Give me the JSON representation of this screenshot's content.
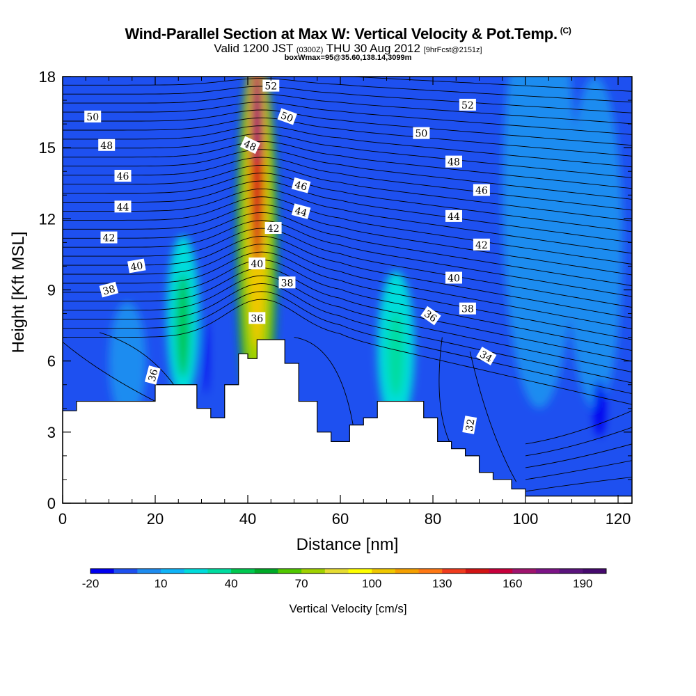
{
  "title": {
    "main": "Wind-Parallel Section at Max W: Vertical Velocity & Pot.Temp.",
    "mark": "(C)",
    "sub_a": "Valid 1200 JST",
    "sub_b": "(0300Z)",
    "sub_c": "THU 30 Aug 2012",
    "sub_d": "[9hrFcst@2151z]",
    "sub3": "boxWmax=95@35.60,138.14,3099m"
  },
  "chart_data": {
    "type": "heatmap",
    "xlabel": "Distance [nm]",
    "ylabel": "Height [Kft MSL]",
    "xlim": [
      0,
      123
    ],
    "ylim": [
      0,
      18
    ],
    "x_ticks": [
      0,
      20,
      40,
      60,
      80,
      100,
      120
    ],
    "y_ticks": [
      0,
      3,
      6,
      9,
      12,
      15,
      18
    ],
    "colorbar": {
      "label": "Vertical Velocity [cm/s]",
      "min": -20,
      "max": 200,
      "step": 10,
      "tick_values": [
        -20,
        10,
        40,
        70,
        100,
        130,
        160,
        190
      ],
      "colors": [
        "#0000f0",
        "#1e50f0",
        "#1e8cf0",
        "#10b4f8",
        "#00dcdc",
        "#00dca0",
        "#00c850",
        "#00aa28",
        "#50c800",
        "#a0d200",
        "#e6dc32",
        "#ffff00",
        "#f0c800",
        "#f5a000",
        "#ff7814",
        "#f03c1e",
        "#d21414",
        "#c8003c",
        "#a0146e",
        "#7d1487",
        "#5a147d",
        "#460a6e"
      ]
    },
    "terrain": [
      [
        0,
        3.9
      ],
      [
        3,
        3.9
      ],
      [
        3,
        4.3
      ],
      [
        20,
        4.3
      ],
      [
        20,
        5.0
      ],
      [
        29,
        5.0
      ],
      [
        29,
        4.0
      ],
      [
        32,
        4.0
      ],
      [
        32,
        3.6
      ],
      [
        35,
        3.6
      ],
      [
        35,
        5.0
      ],
      [
        38,
        5.0
      ],
      [
        38,
        6.3
      ],
      [
        40,
        6.3
      ],
      [
        40,
        6.1
      ],
      [
        42,
        6.1
      ],
      [
        42,
        6.9
      ],
      [
        48,
        6.9
      ],
      [
        48,
        5.9
      ],
      [
        51,
        5.9
      ],
      [
        51,
        4.3
      ],
      [
        55,
        4.3
      ],
      [
        55,
        3.0
      ],
      [
        58,
        3.0
      ],
      [
        58,
        2.6
      ],
      [
        62,
        2.6
      ],
      [
        62,
        3.3
      ],
      [
        65,
        3.3
      ],
      [
        65,
        3.6
      ],
      [
        68,
        3.6
      ],
      [
        68,
        4.3
      ],
      [
        78,
        4.3
      ],
      [
        78,
        3.6
      ],
      [
        81,
        3.6
      ],
      [
        81,
        2.6
      ],
      [
        84,
        2.6
      ],
      [
        84,
        2.3
      ],
      [
        87,
        2.3
      ],
      [
        87,
        2.0
      ],
      [
        90,
        2.0
      ],
      [
        90,
        1.3
      ],
      [
        93,
        1.3
      ],
      [
        93,
        1.0
      ],
      [
        97,
        1.0
      ],
      [
        97,
        0.6
      ],
      [
        100,
        0.6
      ],
      [
        100,
        0.3
      ],
      [
        123,
        0.3
      ]
    ],
    "w_features": [
      {
        "cx": 42,
        "cy": 11,
        "rx": 4.5,
        "ry": 8,
        "w": 50
      },
      {
        "cx": 42,
        "cy": 11.5,
        "rx": 3.2,
        "ry": 7.5,
        "w": 70
      },
      {
        "cx": 42,
        "cy": 13,
        "rx": 2.3,
        "ry": 6.5,
        "w": 100
      },
      {
        "cx": 42,
        "cy": 14.5,
        "rx": 1.5,
        "ry": 4.5,
        "w": 140
      },
      {
        "cx": 42,
        "cy": 16.3,
        "rx": 1.0,
        "ry": 2.0,
        "w": 160
      },
      {
        "cx": 26,
        "cy": 7.8,
        "rx": 3.5,
        "ry": 3.5,
        "w": 20
      },
      {
        "cx": 26,
        "cy": 7.5,
        "rx": 1.5,
        "ry": 2.2,
        "w": 40
      },
      {
        "cx": 72,
        "cy": 6.5,
        "rx": 4,
        "ry": 3.3,
        "w": 20
      },
      {
        "cx": 72,
        "cy": 6.3,
        "rx": 1.8,
        "ry": 1.8,
        "w": 30
      },
      {
        "cx": 14,
        "cy": 6.0,
        "rx": 4,
        "ry": 2.5,
        "w": 5
      },
      {
        "cx": 103,
        "cy": 13,
        "rx": 8,
        "ry": 9,
        "w": 5
      },
      {
        "cx": 115,
        "cy": 11,
        "rx": 6,
        "ry": 7,
        "w": 5
      },
      {
        "cx": 116,
        "cy": 4.0,
        "rx": 1.3,
        "ry": 1.2,
        "w": -15
      },
      {
        "cx": 31,
        "cy": 6.2,
        "rx": 0.5,
        "ry": 1.6,
        "w": -15
      }
    ],
    "theta_labels": [
      {
        "text": "52",
        "x": 45,
        "y": 17.6,
        "angle": 0
      },
      {
        "text": "50",
        "x": 6.5,
        "y": 16.3,
        "angle": 0
      },
      {
        "text": "50",
        "x": 48.5,
        "y": 16.3,
        "angle": 20
      },
      {
        "text": "48",
        "x": 9.5,
        "y": 15.1,
        "angle": 0
      },
      {
        "text": "48",
        "x": 40.5,
        "y": 15.1,
        "angle": 25
      },
      {
        "text": "46",
        "x": 13,
        "y": 13.8,
        "angle": 0
      },
      {
        "text": "46",
        "x": 51.5,
        "y": 13.4,
        "angle": 15
      },
      {
        "text": "44",
        "x": 13,
        "y": 12.5,
        "angle": 0
      },
      {
        "text": "44",
        "x": 51.5,
        "y": 12.3,
        "angle": 15
      },
      {
        "text": "42",
        "x": 10,
        "y": 11.2,
        "angle": 0
      },
      {
        "text": "42",
        "x": 45.5,
        "y": 11.6,
        "angle": 0
      },
      {
        "text": "40",
        "x": 16,
        "y": 10.0,
        "angle": -10
      },
      {
        "text": "40",
        "x": 42,
        "y": 10.1,
        "angle": 0
      },
      {
        "text": "38",
        "x": 10,
        "y": 9.0,
        "angle": -15
      },
      {
        "text": "38",
        "x": 48.5,
        "y": 9.3,
        "angle": 0
      },
      {
        "text": "36",
        "x": 42,
        "y": 7.8,
        "angle": 0
      },
      {
        "text": "36",
        "x": 19.5,
        "y": 5.4,
        "angle": -75
      },
      {
        "text": "52",
        "x": 87.5,
        "y": 16.8,
        "angle": 0
      },
      {
        "text": "50",
        "x": 77.5,
        "y": 15.6,
        "angle": 0
      },
      {
        "text": "48",
        "x": 84.5,
        "y": 14.4,
        "angle": 0
      },
      {
        "text": "46",
        "x": 90.5,
        "y": 13.2,
        "angle": 0
      },
      {
        "text": "44",
        "x": 84.5,
        "y": 12.1,
        "angle": 0
      },
      {
        "text": "42",
        "x": 90.5,
        "y": 10.9,
        "angle": 0
      },
      {
        "text": "40",
        "x": 84.5,
        "y": 9.5,
        "angle": 0
      },
      {
        "text": "38",
        "x": 87.5,
        "y": 8.2,
        "angle": 0
      },
      {
        "text": "36",
        "x": 79.5,
        "y": 7.9,
        "angle": 35
      },
      {
        "text": "34",
        "x": 91.5,
        "y": 6.2,
        "angle": 30
      },
      {
        "text": "32",
        "x": 88,
        "y": 3.3,
        "angle": -80
      }
    ]
  }
}
